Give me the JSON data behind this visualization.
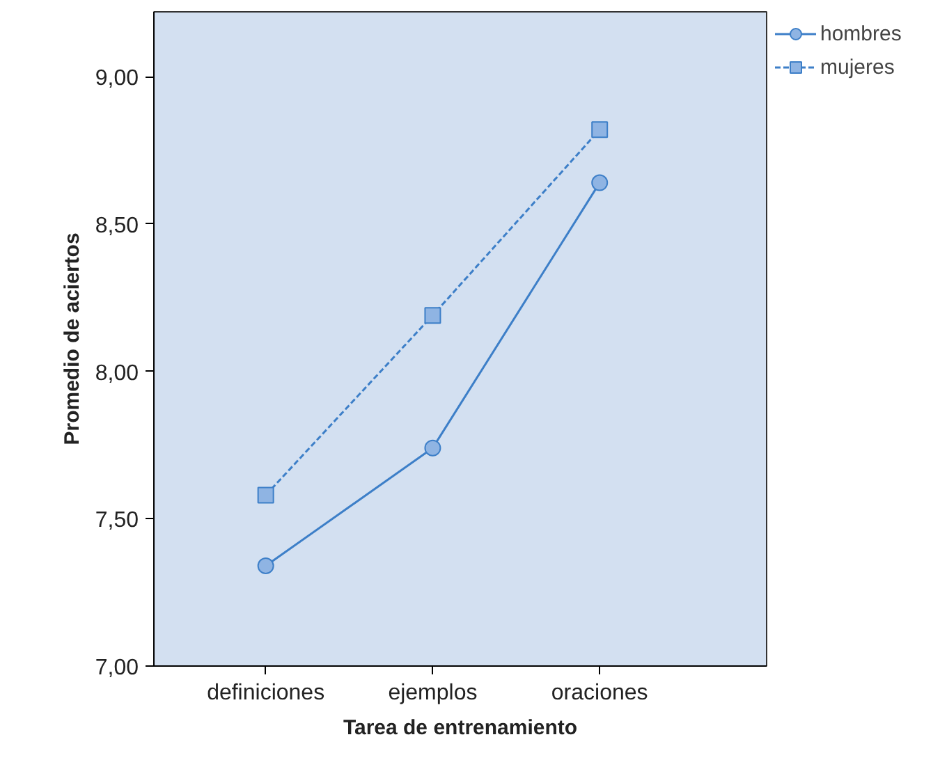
{
  "chart_data": {
    "type": "line",
    "xlabel": "Tarea de entrenamiento",
    "ylabel": "Promedio de aciertos",
    "categories": [
      "definiciones",
      "ejemplos",
      "oraciones"
    ],
    "series": [
      {
        "name": "hombres",
        "color": "#3d7fc8",
        "values": [
          7.34,
          7.74,
          8.64
        ],
        "marker": "circle",
        "line_style": "solid"
      },
      {
        "name": "mujeres",
        "color": "#3d7fc8",
        "values": [
          7.58,
          8.19,
          8.82
        ],
        "marker": "square",
        "line_style": "dashed"
      }
    ],
    "ylim": [
      7.0,
      9.22
    ],
    "yticks": [
      {
        "value": 7.0,
        "label": "7,00"
      },
      {
        "value": 7.5,
        "label": "7,50"
      },
      {
        "value": 8.0,
        "label": "8,00"
      },
      {
        "value": 8.5,
        "label": "8,50"
      },
      {
        "value": 9.0,
        "label": "9,00"
      }
    ],
    "grid": false,
    "legend": "top right"
  }
}
